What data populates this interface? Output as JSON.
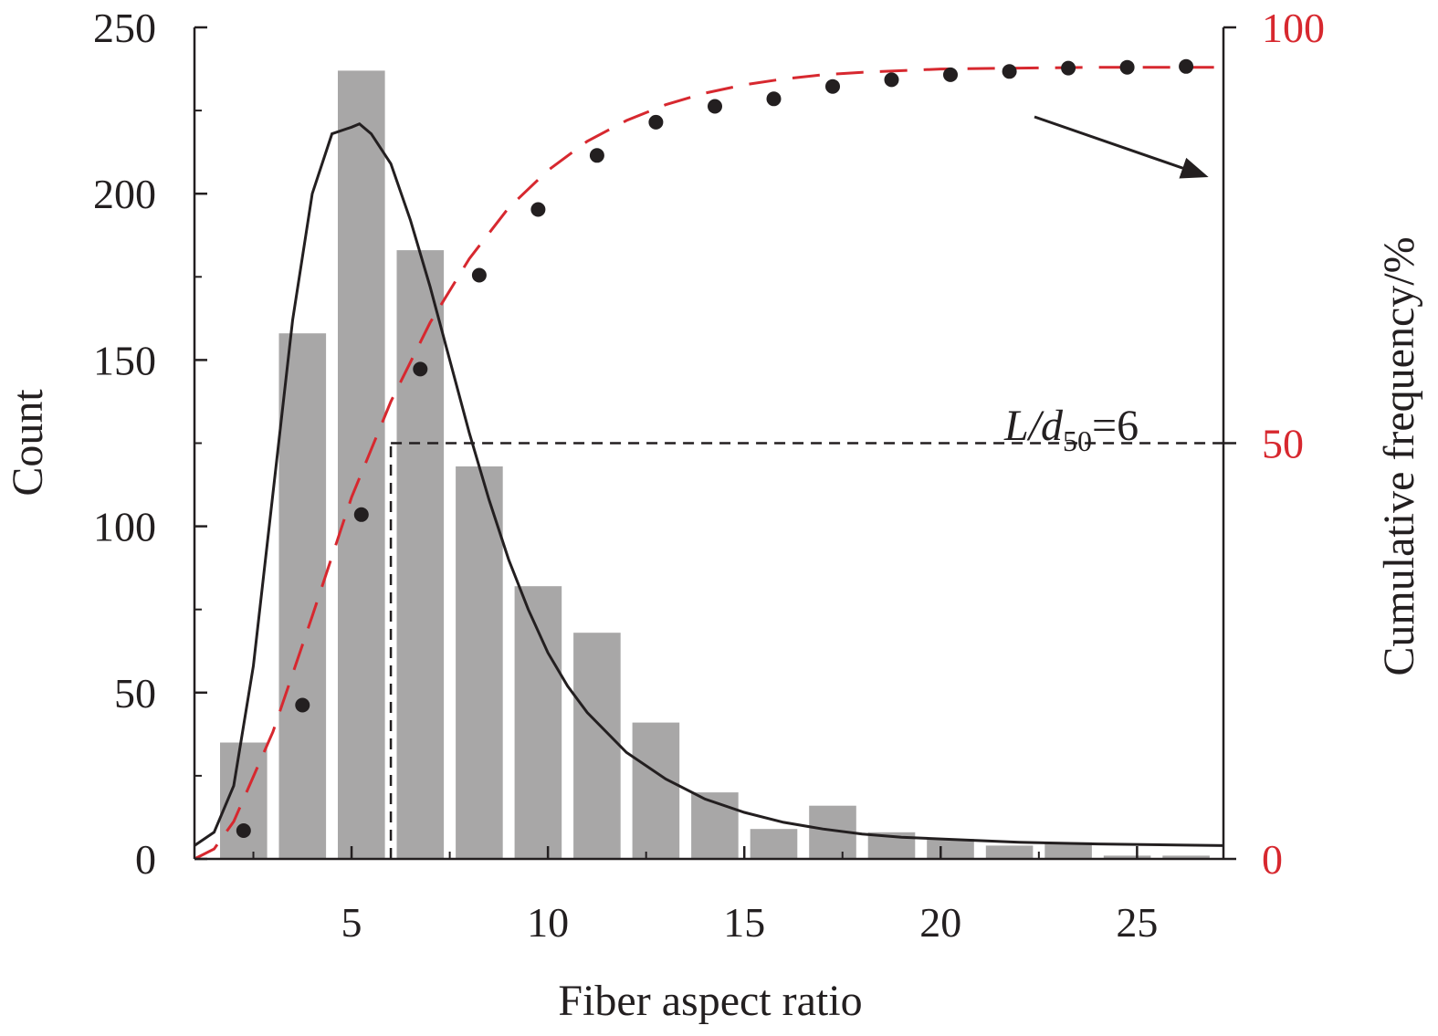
{
  "chart_data": {
    "type": "bar",
    "xlabel": "Fiber aspect ratio",
    "ylabel": "Count",
    "y2label": "Cumulative frequency/%",
    "xlim": [
      1,
      27.2
    ],
    "ylim": [
      0,
      250
    ],
    "y2lim": [
      0,
      100
    ],
    "x_ticks": [
      5,
      10,
      15,
      20,
      25
    ],
    "y_ticks": [
      0,
      50,
      100,
      150,
      200,
      250
    ],
    "y2_ticks": [
      0,
      50,
      100
    ],
    "bars": {
      "name": "Count",
      "color": "#a8a7a7",
      "x": [
        2.25,
        3.75,
        5.25,
        6.75,
        8.25,
        9.75,
        11.25,
        12.75,
        14.25,
        15.75,
        17.25,
        18.75,
        20.25,
        21.75,
        23.25,
        24.75,
        26.25
      ],
      "values": [
        35,
        158,
        237,
        183,
        118,
        82,
        68,
        41,
        20,
        9,
        16,
        8,
        6,
        4,
        5,
        1,
        1
      ]
    },
    "fit_curve": {
      "name": "Distribution fit",
      "color": "#231f20",
      "x": [
        1.0,
        1.5,
        2.0,
        2.5,
        3.0,
        3.5,
        4.0,
        4.5,
        5.0,
        5.2,
        5.5,
        6.0,
        6.5,
        7.0,
        7.5,
        8.0,
        8.5,
        9.0,
        9.5,
        10.0,
        10.5,
        11.0,
        12.0,
        13.0,
        14.0,
        15.0,
        16.0,
        17.0,
        18.0,
        19.0,
        20.0,
        22.0,
        24.0,
        26.0,
        27.2
      ],
      "values": [
        4,
        8,
        22,
        58,
        110,
        162,
        200,
        218,
        220,
        221,
        218,
        209,
        192,
        172,
        150,
        128,
        108,
        90,
        75,
        62,
        52,
        44,
        32,
        24,
        18,
        14,
        11,
        9,
        7.5,
        6.5,
        6,
        5,
        4.5,
        4.2,
        4
      ]
    },
    "cumulative_points": {
      "name": "Cumulative frequency",
      "color": "#231f20",
      "x": [
        2.25,
        3.75,
        5.25,
        6.75,
        8.25,
        9.75,
        11.25,
        12.75,
        14.25,
        15.75,
        17.25,
        18.75,
        20.25,
        21.75,
        23.25,
        24.75,
        26.25
      ],
      "values": [
        3.4,
        18.5,
        41.4,
        58.9,
        70.2,
        78.1,
        84.6,
        88.6,
        90.5,
        91.4,
        92.9,
        93.7,
        94.3,
        94.7,
        95.1,
        95.2,
        95.3
      ]
    },
    "cumulative_fit": {
      "name": "Cumulative fit",
      "color": "#d7282f",
      "x": [
        1.0,
        1.5,
        2.0,
        3.0,
        4.0,
        5.0,
        6.0,
        7.0,
        8.0,
        9.0,
        10.0,
        11.0,
        12.0,
        13.0,
        14.0,
        15.0,
        16.0,
        17.0,
        18.0,
        20.0,
        22.0,
        24.0,
        26.0,
        27.2
      ],
      "values": [
        0,
        1.2,
        4.5,
        15.3,
        29.2,
        43.5,
        55.0,
        64.5,
        72.2,
        78.3,
        82.8,
        86.3,
        88.8,
        90.7,
        92.1,
        93.1,
        93.8,
        94.3,
        94.6,
        95.0,
        95.1,
        95.2,
        95.2,
        95.2
      ]
    },
    "median_marker": {
      "x": 6,
      "y2": 50,
      "label_italic_prefix": "L/d",
      "label_subscript": "50",
      "label_suffix": "=6"
    }
  }
}
